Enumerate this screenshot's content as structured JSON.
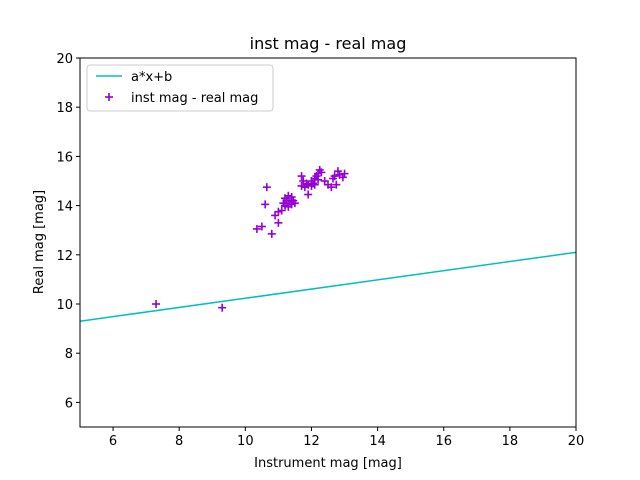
{
  "chart_data": {
    "type": "scatter",
    "title": "inst mag - real mag",
    "xlabel": "Instrument mag [mag]",
    "ylabel": "Real mag [mag]",
    "xlim": [
      5,
      20
    ],
    "ylim": [
      5,
      20
    ],
    "xticks": [
      6,
      8,
      10,
      12,
      14,
      16,
      18,
      20
    ],
    "yticks": [
      6,
      8,
      10,
      12,
      14,
      16,
      18,
      20
    ],
    "grid": false,
    "legend_position": "top-left",
    "series": [
      {
        "name": "a*x+b",
        "kind": "line",
        "color": "#00bfbf",
        "x": [
          5,
          20
        ],
        "y": [
          9.3,
          12.1
        ]
      },
      {
        "name": "inst mag - real mag",
        "kind": "scatter",
        "marker": "+",
        "color": "#9400d3",
        "x": [
          7.3,
          9.3,
          10.35,
          10.5,
          10.6,
          10.65,
          10.8,
          10.9,
          11.0,
          11.0,
          11.1,
          11.15,
          11.2,
          11.2,
          11.25,
          11.3,
          11.3,
          11.35,
          11.4,
          11.4,
          11.45,
          11.5,
          11.7,
          11.7,
          11.75,
          11.8,
          11.85,
          11.9,
          11.9,
          12.0,
          12.0,
          12.05,
          12.1,
          12.1,
          12.15,
          12.2,
          12.2,
          12.25,
          12.3,
          12.4,
          12.5,
          12.6,
          12.65,
          12.7,
          12.75,
          12.8,
          12.85,
          12.95,
          13.0
        ],
        "y": [
          10.0,
          9.85,
          13.05,
          13.15,
          14.05,
          14.75,
          12.85,
          13.6,
          13.3,
          13.75,
          13.8,
          14.1,
          14.0,
          14.3,
          14.2,
          13.95,
          14.4,
          14.15,
          14.05,
          14.35,
          14.2,
          14.1,
          15.2,
          14.8,
          15.0,
          14.75,
          14.9,
          14.45,
          14.85,
          14.8,
          15.0,
          14.9,
          15.1,
          14.85,
          15.2,
          15.3,
          15.05,
          15.45,
          15.35,
          15.0,
          14.85,
          14.75,
          15.1,
          15.2,
          14.85,
          15.4,
          15.25,
          15.15,
          15.3
        ]
      }
    ]
  }
}
